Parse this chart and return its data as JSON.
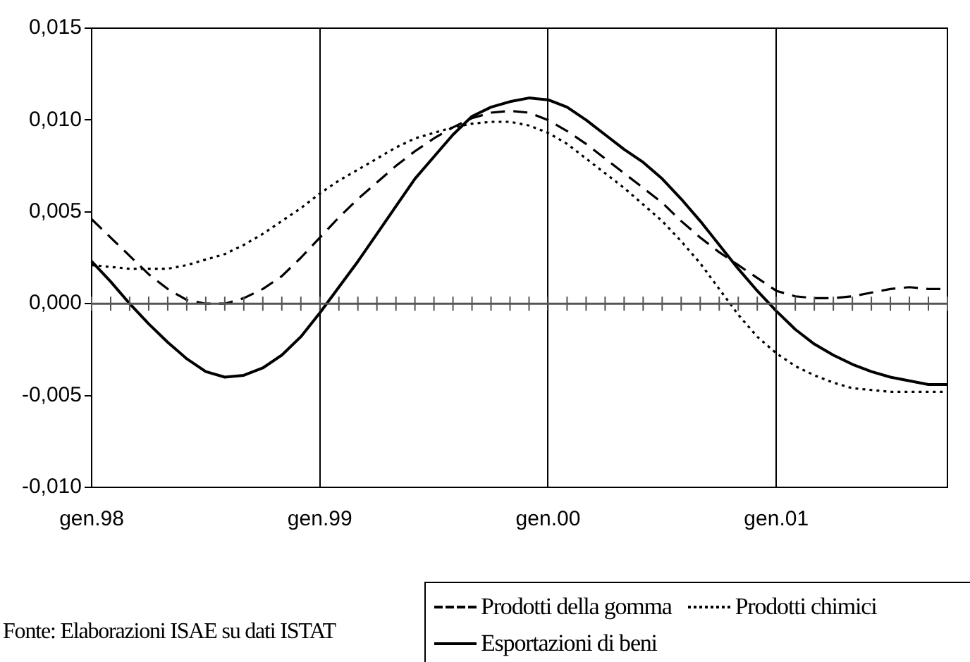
{
  "chart_data": {
    "type": "line",
    "categories": [
      "gen.98",
      null,
      null,
      null,
      null,
      null,
      null,
      null,
      null,
      null,
      null,
      null,
      "gen.99",
      null,
      null,
      null,
      null,
      null,
      null,
      null,
      null,
      null,
      null,
      null,
      "gen.00",
      null,
      null,
      null,
      null,
      null,
      null,
      null,
      null,
      null,
      null,
      null,
      "gen.01",
      null,
      null,
      null,
      null,
      null,
      null,
      null,
      null,
      null
    ],
    "series": [
      {
        "name": "Prodotti della gomma",
        "color": "#000000",
        "line_style": "dashed",
        "values": [
          0.0046,
          0.0036,
          0.0026,
          0.0016,
          0.0008,
          0.0002,
          0.0,
          0.0,
          0.0003,
          0.0008,
          0.0015,
          0.0025,
          0.0036,
          0.0047,
          0.0057,
          0.0066,
          0.0075,
          0.0083,
          0.009,
          0.0096,
          0.0101,
          0.0104,
          0.0105,
          0.0104,
          0.01,
          0.0094,
          0.0087,
          0.0079,
          0.0071,
          0.0063,
          0.0055,
          0.0045,
          0.0036,
          0.0028,
          0.0021,
          0.0014,
          0.0007,
          0.0004,
          0.0003,
          0.0003,
          0.0004,
          0.0006,
          0.0008,
          0.0009,
          0.0008,
          0.0008
        ]
      },
      {
        "name": "Prodotti chimici",
        "color": "#000000",
        "line_style": "dotted",
        "values": [
          0.0021,
          0.002,
          0.0019,
          0.0019,
          0.0019,
          0.0021,
          0.0024,
          0.0027,
          0.0032,
          0.0038,
          0.0045,
          0.0052,
          0.006,
          0.0067,
          0.0073,
          0.0079,
          0.0085,
          0.009,
          0.0093,
          0.0096,
          0.0098,
          0.0099,
          0.0099,
          0.0097,
          0.0093,
          0.0087,
          0.0079,
          0.0071,
          0.0063,
          0.0054,
          0.0045,
          0.0034,
          0.0022,
          0.0008,
          -0.0006,
          -0.0018,
          -0.0027,
          -0.0034,
          -0.0039,
          -0.0043,
          -0.0046,
          -0.0047,
          -0.0048,
          -0.0048,
          -0.0048,
          -0.0048
        ]
      },
      {
        "name": "Esportazioni di beni",
        "color": "#000000",
        "line_style": "solid",
        "values": [
          0.0023,
          0.0012,
          0.0,
          -0.0011,
          -0.0021,
          -0.003,
          -0.0037,
          -0.004,
          -0.0039,
          -0.0035,
          -0.0028,
          -0.0018,
          -0.0005,
          0.0009,
          0.0023,
          0.0038,
          0.0053,
          0.0068,
          0.008,
          0.0092,
          0.0102,
          0.0107,
          0.011,
          0.0112,
          0.0111,
          0.0107,
          0.01,
          0.0092,
          0.0084,
          0.0077,
          0.0068,
          0.0057,
          0.0045,
          0.0032,
          0.0019,
          0.0007,
          -0.0004,
          -0.0014,
          -0.0022,
          -0.0028,
          -0.0033,
          -0.0037,
          -0.004,
          -0.0042,
          -0.0044,
          -0.0044
        ]
      }
    ],
    "ylim": [
      -0.01,
      0.015
    ],
    "yticks": [
      {
        "value": -0.01,
        "label": "-0,010"
      },
      {
        "value": -0.005,
        "label": "-0,005"
      },
      {
        "value": 0,
        "label": "0,000"
      },
      {
        "value": 0.005,
        "label": "0,005"
      },
      {
        "value": 0.01,
        "label": "0,010"
      },
      {
        "value": 0.015,
        "label": "0,015"
      }
    ],
    "grid": "x",
    "legend": "bottom right",
    "marker": "none",
    "annotations": [
      "Fonte: Elaborazioni ISAE su dati ISTAT"
    ]
  }
}
